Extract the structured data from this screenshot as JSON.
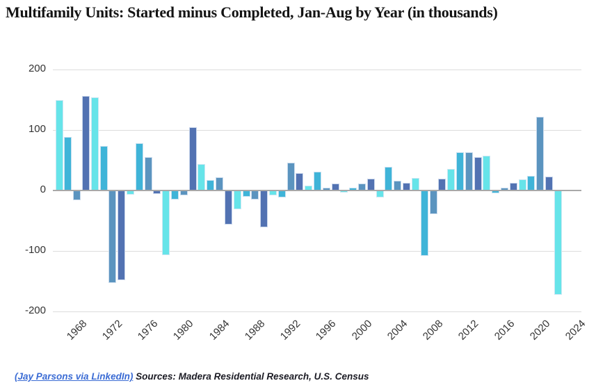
{
  "title": "Multifamily Units: Started minus Completed, Jan-Aug by Year (in thousands)",
  "footer": {
    "link_text": "(Jay Parsons via LinkedIn)",
    "sources_text": "Sources: Madera Residential Research, U.S. Census"
  },
  "colors": {
    "title_text": "#141414",
    "tick_text": "#333333",
    "gridline": "#dcdcdc",
    "zero_line": "#a8a8a8",
    "link_blue": "#3a6bd4",
    "bar_cyan": "#66E4E9",
    "bar_teal": "#3FB4D8",
    "bar_steel": "#5B94BF",
    "bar_slate": "#5272B2"
  },
  "chart_data": {
    "type": "bar",
    "title": "Multifamily Units: Started minus Completed, Jan-Aug by Year (in thousands)",
    "xlabel": "",
    "ylabel": "",
    "ylim": [
      -200,
      200
    ],
    "grid": true,
    "legend": false,
    "color_cycle": [
      "#66E4E9",
      "#3FB4D8",
      "#5B94BF",
      "#5272B2"
    ],
    "color_cycle_names": [
      "cyan",
      "teal",
      "steel",
      "slate"
    ],
    "yticks": [
      200,
      100,
      0,
      -100,
      -200
    ],
    "xticks": [
      1968,
      1972,
      1976,
      1980,
      1984,
      1988,
      1992,
      1996,
      2000,
      2004,
      2008,
      2012,
      2016,
      2020,
      2024
    ],
    "x": [
      1968,
      1969,
      1970,
      1971,
      1972,
      1973,
      1974,
      1975,
      1976,
      1977,
      1978,
      1979,
      1980,
      1981,
      1982,
      1983,
      1984,
      1985,
      1986,
      1987,
      1988,
      1989,
      1990,
      1991,
      1992,
      1993,
      1994,
      1995,
      1996,
      1997,
      1998,
      1999,
      2000,
      2001,
      2002,
      2003,
      2004,
      2005,
      2006,
      2007,
      2008,
      2009,
      2010,
      2011,
      2012,
      2013,
      2014,
      2015,
      2016,
      2017,
      2018,
      2019,
      2020,
      2021,
      2022,
      2023,
      2024
    ],
    "values": [
      150,
      89,
      -16,
      156,
      154,
      74,
      -153,
      -148,
      -7,
      78,
      55,
      -6,
      -107,
      -15,
      -8,
      105,
      44,
      17,
      22,
      -56,
      -31,
      -10,
      -15,
      -61,
      -8,
      -11,
      46,
      29,
      8,
      31,
      5,
      11,
      -3,
      5,
      11,
      19,
      -11,
      39,
      16,
      13,
      21,
      -108,
      -39,
      19,
      36,
      63,
      63,
      55,
      57,
      -5,
      5,
      13,
      18,
      24,
      122,
      23,
      -172
    ]
  }
}
